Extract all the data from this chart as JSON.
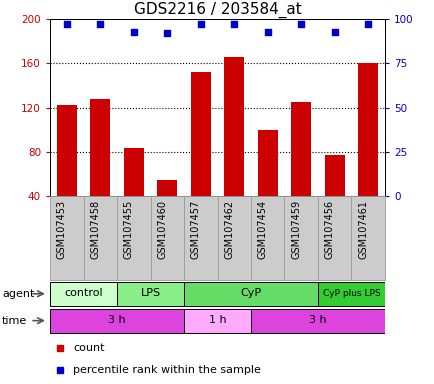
{
  "title": "GDS2216 / 203584_at",
  "samples": [
    "GSM107453",
    "GSM107458",
    "GSM107455",
    "GSM107460",
    "GSM107457",
    "GSM107462",
    "GSM107454",
    "GSM107459",
    "GSM107456",
    "GSM107461"
  ],
  "counts": [
    122,
    128,
    83,
    54,
    152,
    166,
    100,
    125,
    77,
    160
  ],
  "percentile_ranks": [
    97,
    97,
    93,
    92,
    97,
    97,
    93,
    97,
    93,
    97
  ],
  "ylim_left": [
    40,
    200
  ],
  "ylim_right": [
    0,
    100
  ],
  "yticks_left": [
    40,
    80,
    120,
    160,
    200
  ],
  "yticks_right": [
    0,
    25,
    50,
    75,
    100
  ],
  "bar_color": "#cc0000",
  "dot_color": "#0000cc",
  "agent_groups": [
    {
      "label": "control",
      "start": 0,
      "end": 2,
      "color": "#ccffcc"
    },
    {
      "label": "LPS",
      "start": 2,
      "end": 4,
      "color": "#88ee88"
    },
    {
      "label": "CyP",
      "start": 4,
      "end": 8,
      "color": "#66dd66"
    },
    {
      "label": "CyP plus LPS",
      "start": 8,
      "end": 10,
      "color": "#33cc33"
    }
  ],
  "time_groups": [
    {
      "label": "3 h",
      "start": 0,
      "end": 4,
      "color": "#dd44dd"
    },
    {
      "label": "1 h",
      "start": 4,
      "end": 6,
      "color": "#ffaaff"
    },
    {
      "label": "3 h",
      "start": 6,
      "end": 10,
      "color": "#dd44dd"
    }
  ],
  "left_tick_color": "#cc0000",
  "right_tick_color": "#0000cc",
  "bar_width": 0.6,
  "dot_size": 20,
  "grid_linestyle": ":",
  "grid_color": "#000000",
  "grid_linewidth": 0.8,
  "tick_label_fontsize": 7.5,
  "sample_label_fontsize": 7,
  "title_fontsize": 11,
  "xlabel_bg_color": "#cccccc",
  "xlabel_edge_color": "#999999"
}
